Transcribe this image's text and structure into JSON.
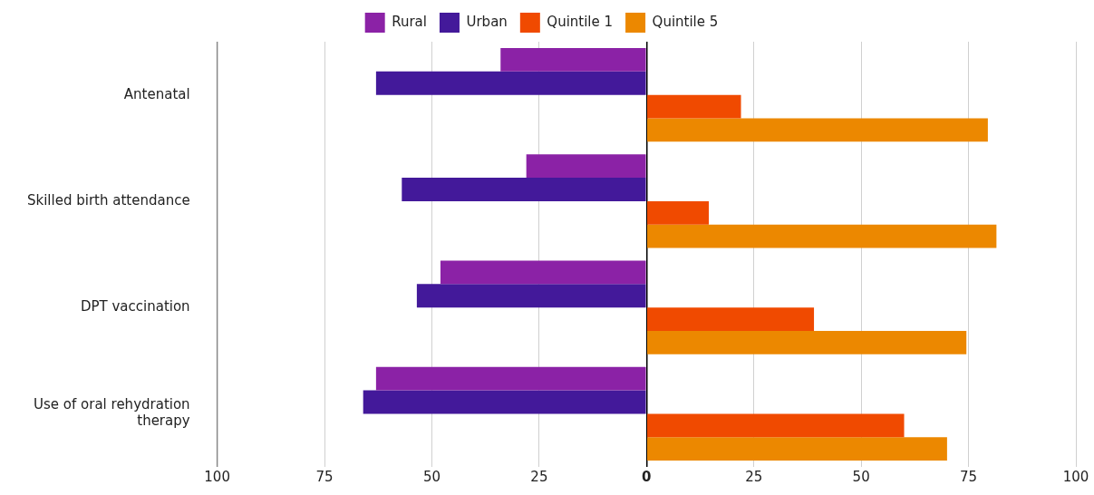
{
  "chart_data": {
    "type": "bar",
    "orientation": "horizontal",
    "categories": [
      "Antenatal",
      "Skilled birth attendance",
      "DPT vaccination",
      "Use of oral rehydration therapy"
    ],
    "series": [
      {
        "name": "Rural",
        "color": "#8b22a6",
        "values": [
          -34,
          -28,
          -48,
          -63
        ]
      },
      {
        "name": "Urban",
        "color": "#43199a",
        "values": [
          -63,
          -57,
          -53.5,
          -66
        ]
      },
      {
        "name": "Quintile 1",
        "color": "#f04a00",
        "values": [
          22,
          14.5,
          39,
          60
        ]
      },
      {
        "name": "Quintile 5",
        "color": "#ec8800",
        "values": [
          79.5,
          81.5,
          74.5,
          70
        ]
      }
    ],
    "xlim": [
      -100,
      100
    ],
    "xticks": [
      {
        "value": -100,
        "label": "100"
      },
      {
        "value": -75,
        "label": "75"
      },
      {
        "value": -50,
        "label": "50"
      },
      {
        "value": -25,
        "label": "25"
      },
      0,
      25,
      50,
      75,
      100
    ],
    "grid": "x",
    "legend": "top"
  }
}
